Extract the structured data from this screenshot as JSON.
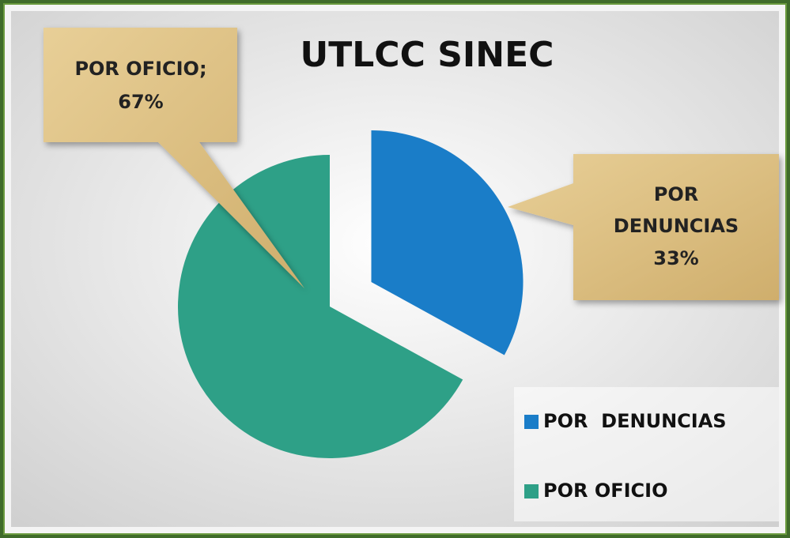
{
  "chart_data": {
    "type": "pie",
    "title": "UTLCC SINEC",
    "categories": [
      "POR  DENUNCIAS",
      "POR OFICIO"
    ],
    "values": [
      33,
      67
    ],
    "value_labels": [
      "33%",
      "67%"
    ],
    "label_lines": [
      [
        "POR",
        "DENUNCIAS"
      ],
      [
        "POR OFICIO;"
      ]
    ],
    "colors": [
      "#1a7dc8",
      "#2ea087"
    ],
    "legend": "lower right"
  }
}
